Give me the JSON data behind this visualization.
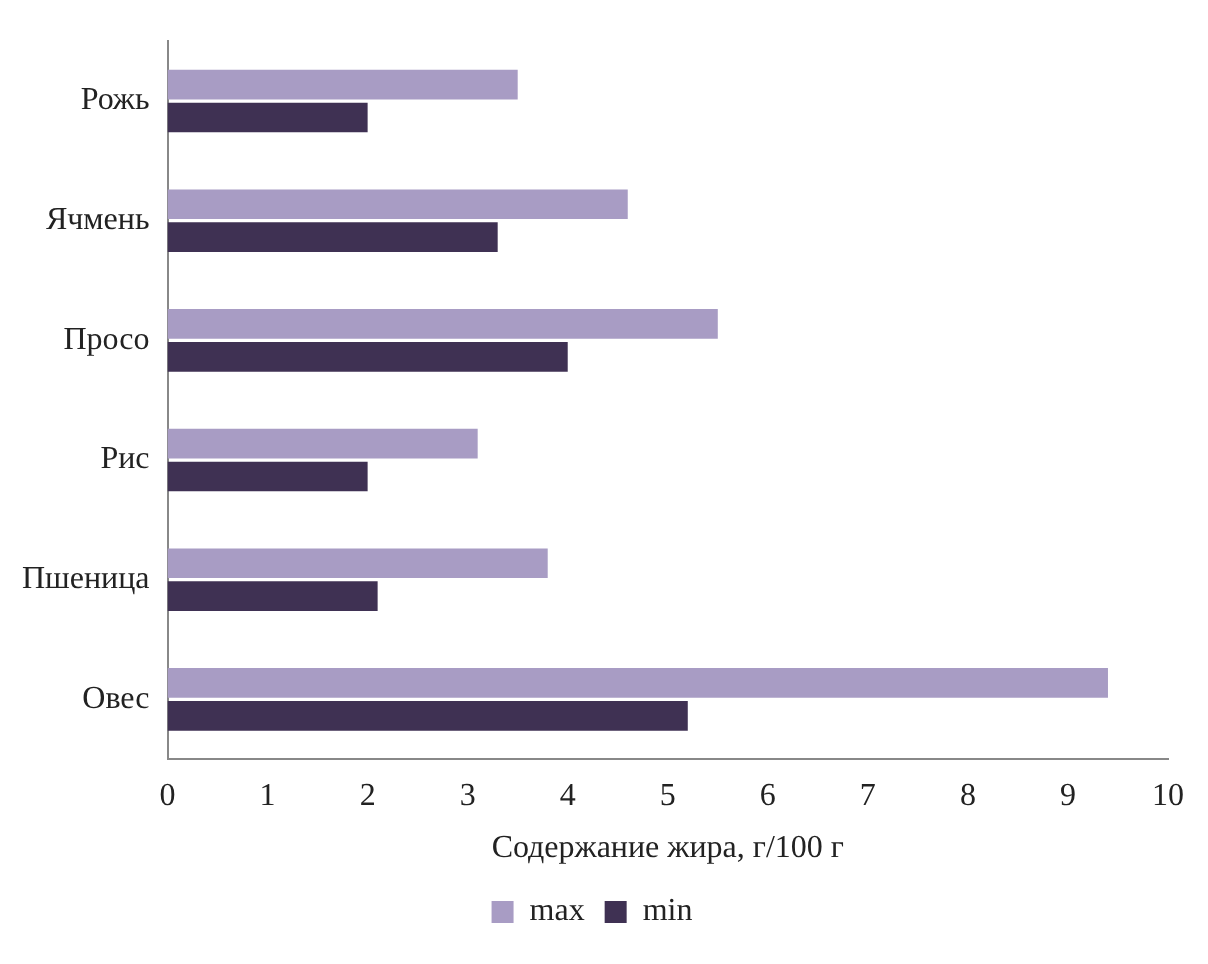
{
  "chart_data": {
    "type": "bar",
    "orientation": "horizontal",
    "xlabel": "Содержание жира, г/100 г",
    "categories": [
      "Рожь",
      "Ячмень",
      "Просо",
      "Рис",
      "Пшеница",
      "Овес"
    ],
    "series": [
      {
        "name": "max",
        "color": "#a89cc4",
        "values": [
          3.5,
          4.6,
          5.5,
          3.1,
          3.8,
          9.4
        ]
      },
      {
        "name": "min",
        "color": "#3f3153",
        "values": [
          2.0,
          3.3,
          4.0,
          2.0,
          2.1,
          5.2
        ]
      }
    ],
    "xlim": [
      0,
      10
    ],
    "xticks": [
      0,
      1,
      2,
      3,
      4,
      5,
      6,
      7,
      8,
      9,
      10
    ],
    "grid": false,
    "legend": "bottom"
  }
}
